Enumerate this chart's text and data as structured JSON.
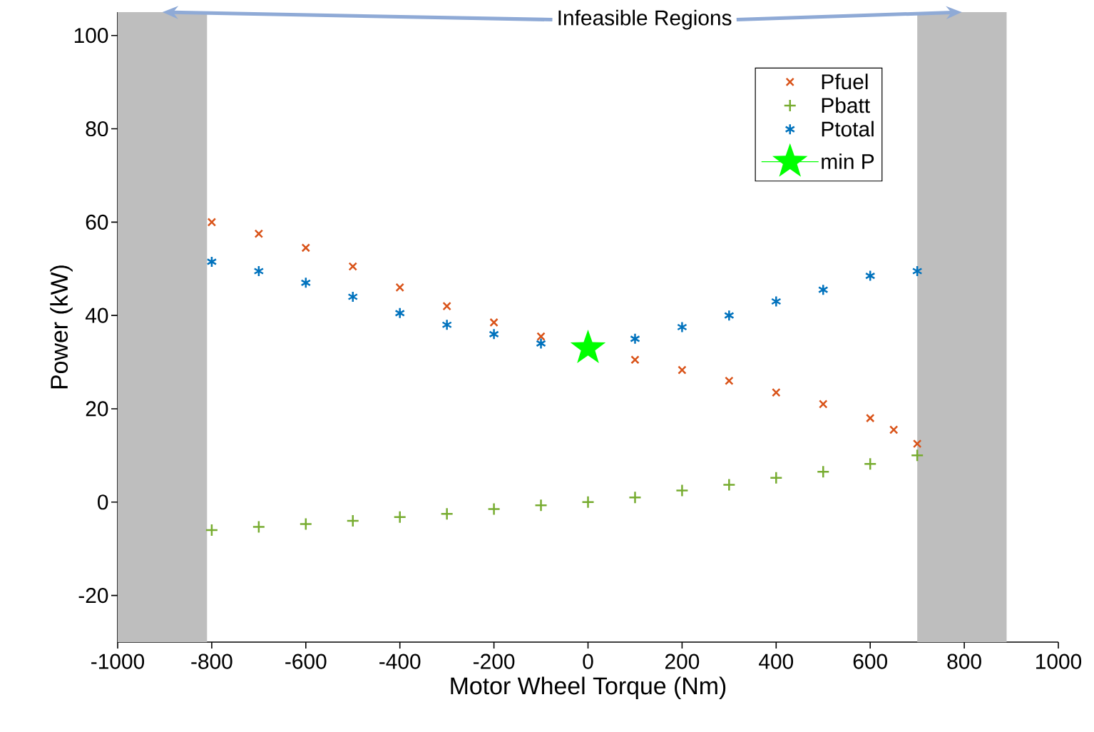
{
  "chart_data": {
    "type": "scatter",
    "xlabel": "Motor Wheel Torque (Nm)",
    "ylabel": "Power (kW)",
    "xlim": [
      -1000,
      1000
    ],
    "ylim": [
      -30,
      105
    ],
    "xticks": [
      -1000,
      -800,
      -600,
      -400,
      -200,
      0,
      200,
      400,
      600,
      800,
      1000
    ],
    "yticks": [
      -20,
      0,
      20,
      40,
      60,
      80,
      100
    ],
    "legend": "top right",
    "bands": [
      {
        "axis": "x",
        "from": -1000,
        "to": -810,
        "color": "#bebebe",
        "label": "Infeasible Regions"
      },
      {
        "axis": "x",
        "from": 700,
        "to": 890,
        "color": "#bebebe"
      }
    ],
    "series": [
      {
        "name": "Pfuel",
        "color": "#d95319",
        "marker": "cross",
        "x": [
          -800,
          -700,
          -600,
          -500,
          -400,
          -300,
          -200,
          -100,
          100,
          200,
          300,
          400,
          500,
          600,
          650,
          700
        ],
        "values": [
          60,
          57.5,
          54.5,
          50.5,
          46,
          42,
          38.5,
          35.5,
          30.5,
          28.3,
          26,
          23.5,
          21,
          18,
          15.5,
          12.5
        ]
      },
      {
        "name": "Pbatt",
        "color": "#77ac30",
        "marker": "plus",
        "x": [
          -800,
          -700,
          -600,
          -500,
          -400,
          -300,
          -200,
          -100,
          0,
          100,
          200,
          300,
          400,
          500,
          600,
          700
        ],
        "values": [
          -6,
          -5.3,
          -4.7,
          -4,
          -3.2,
          -2.5,
          -1.5,
          -0.7,
          0,
          1,
          2.5,
          3.7,
          5.2,
          6.5,
          8.2,
          10
        ]
      },
      {
        "name": "Ptotal",
        "color": "#0072bd",
        "x": [
          -800,
          -700,
          -600,
          -500,
          -400,
          -300,
          -200,
          -100,
          100,
          200,
          300,
          400,
          500,
          600,
          700
        ],
        "values": [
          51.5,
          49.5,
          47,
          44,
          40.5,
          38,
          36,
          34,
          35,
          37.5,
          40,
          43,
          45.5,
          48.5,
          49.5
        ]
      },
      {
        "name": "min P",
        "type": "line",
        "line_style": "solid",
        "color": "#00ff00",
        "marker": "star",
        "x": [
          0
        ],
        "values": [
          33
        ]
      }
    ]
  }
}
